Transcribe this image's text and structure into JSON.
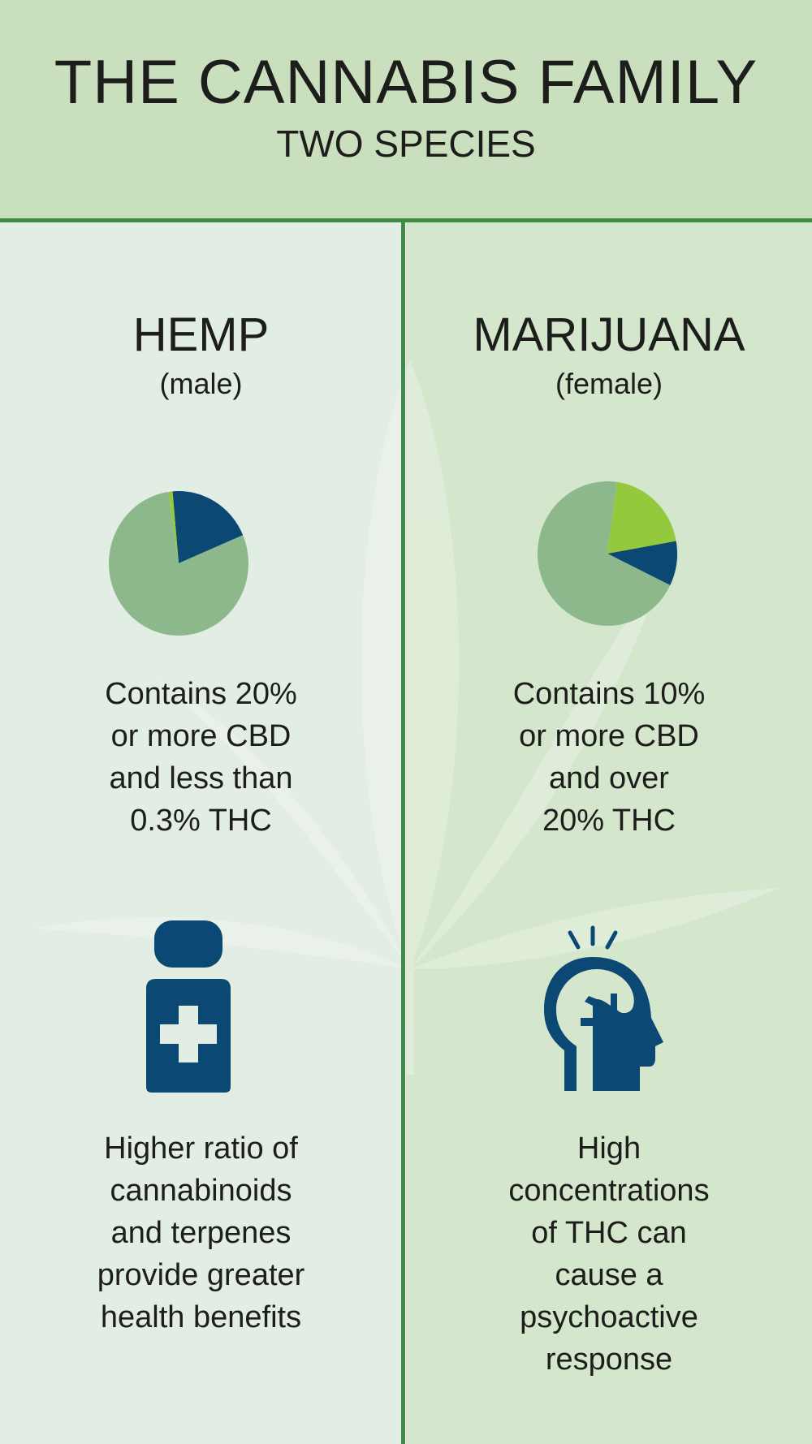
{
  "header": {
    "title": "THE CANNABIS FAMILY",
    "subtitle": "TWO SPECIES"
  },
  "colors": {
    "header_bg": "#c9dfbd",
    "divider": "#3f8a45",
    "navy": "#0b4874",
    "lime": "#95c93d",
    "pie_green": "#8db88c"
  },
  "hemp": {
    "name": "HEMP",
    "sex": "(male)",
    "description": [
      "Contains 20%",
      "or more CBD",
      "and less than",
      "0.3% THC"
    ],
    "icon": "medicine-bottle-icon",
    "benefit": [
      "Higher ratio of",
      "cannabinoids",
      "and terpenes",
      "provide greater",
      "health benefits"
    ]
  },
  "marijuana": {
    "name": "MARIJUANA",
    "sex": "(female)",
    "description": [
      "Contains 10%",
      "or more CBD",
      "and over",
      "20% THC"
    ],
    "icon": "head-brain-icon",
    "benefit": [
      "High",
      "concentrations",
      "of THC can",
      "cause a",
      "psychoactive",
      "response"
    ]
  },
  "chart_data": [
    {
      "type": "pie",
      "values": [
        20,
        1,
        79
      ],
      "colors": [
        "#0b4874",
        "#95c93d",
        "#8db88c"
      ]
    },
    {
      "type": "pie",
      "values": [
        10,
        20,
        70
      ],
      "colors": [
        "#0b4874",
        "#95c93d",
        "#8db88c"
      ]
    }
  ]
}
